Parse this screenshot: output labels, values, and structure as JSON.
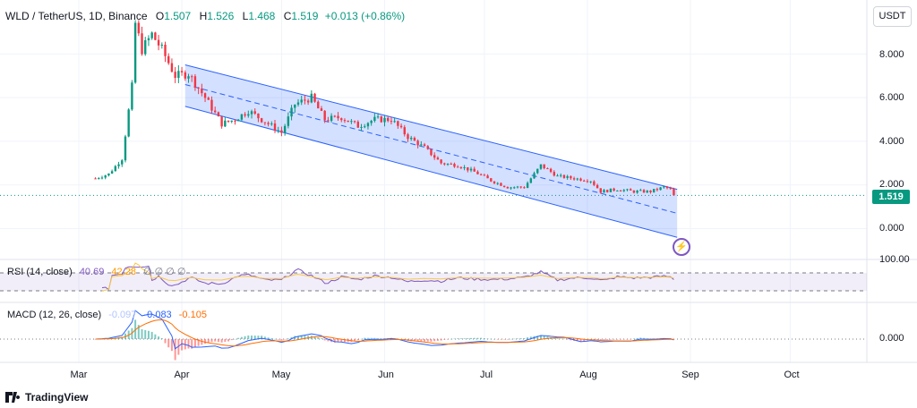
{
  "header": {
    "symbol": "WLD / TetherUS, 1D, Binance",
    "open_key": "O",
    "open": "1.507",
    "high_key": "H",
    "high": "1.526",
    "low_key": "L",
    "low": "1.468",
    "close_key": "C",
    "close": "1.519",
    "change": "+0.013 (+0.86%)"
  },
  "currency_button": "USDT",
  "price_badge": "1.519",
  "rsi_header": {
    "name": "RSI (14, close)",
    "value1": "40.69",
    "value2": "42.28",
    "dots": "∅ ∅ ∅ ∅"
  },
  "macd_header": {
    "name": "MACD (12, 26, close)",
    "value1": "-0.097",
    "value2": "-0.083",
    "value3": "-0.105"
  },
  "logo_text": "TradingView",
  "colors": {
    "up": "#089981",
    "down": "#f23645",
    "channel": "#2962ff",
    "rsi": "#7e57c2",
    "signal": "#ff9800"
  },
  "chart_data": [
    {
      "type": "candlestick",
      "title": "WLD / TetherUS, 1D, Binance",
      "x_ticks": [
        "Mar",
        "Apr",
        "May",
        "Jun",
        "Jul",
        "Aug",
        "Sep",
        "Oct"
      ],
      "y_ticks": [
        "8.000",
        "6.000",
        "4.000",
        "2.000",
        "0.000"
      ],
      "ylim": [
        -0.3,
        10.5
      ],
      "last_price": 1.519,
      "close_path": [
        {
          "x": "Feb 18",
          "y": 2.3
        },
        {
          "x": "Feb 22",
          "y": 2.5
        },
        {
          "x": "Feb 26",
          "y": 3.2
        },
        {
          "x": "Feb 29",
          "y": 6.5
        },
        {
          "x": "Mar 3",
          "y": 8.5
        },
        {
          "x": "Mar 6",
          "y": 7.5
        },
        {
          "x": "Mar 9",
          "y": 9.2
        },
        {
          "x": "Mar 11",
          "y": 10.2
        },
        {
          "x": "Mar 14",
          "y": 9.5
        },
        {
          "x": "Mar 17",
          "y": 10.0
        },
        {
          "x": "Mar 20",
          "y": 8.2
        },
        {
          "x": "Mar 23",
          "y": 8.9
        },
        {
          "x": "Mar 26",
          "y": 8.2
        },
        {
          "x": "Mar 30",
          "y": 7.0
        },
        {
          "x": "Apr 3",
          "y": 7.1
        },
        {
          "x": "Apr 8",
          "y": 6.0
        },
        {
          "x": "Apr 13",
          "y": 4.8
        },
        {
          "x": "Apr 17",
          "y": 5.0
        },
        {
          "x": "Apr 21",
          "y": 5.4
        },
        {
          "x": "Apr 26",
          "y": 4.9
        },
        {
          "x": "May 1",
          "y": 4.4
        },
        {
          "x": "May 5",
          "y": 5.7
        },
        {
          "x": "May 10",
          "y": 6.0
        },
        {
          "x": "May 14",
          "y": 5.0
        },
        {
          "x": "May 19",
          "y": 5.1
        },
        {
          "x": "May 24",
          "y": 4.7
        },
        {
          "x": "May 29",
          "y": 5.0
        },
        {
          "x": "Jun 3",
          "y": 5.0
        },
        {
          "x": "Jun 8",
          "y": 4.2
        },
        {
          "x": "Jun 13",
          "y": 3.7
        },
        {
          "x": "Jun 18",
          "y": 3.0
        },
        {
          "x": "Jun 23",
          "y": 2.9
        },
        {
          "x": "Jun 28",
          "y": 2.6
        },
        {
          "x": "Jul 3",
          "y": 2.2
        },
        {
          "x": "Jul 8",
          "y": 1.9
        },
        {
          "x": "Jul 13",
          "y": 1.9
        },
        {
          "x": "Jul 18",
          "y": 2.9
        },
        {
          "x": "Jul 23",
          "y": 2.4
        },
        {
          "x": "Jul 28",
          "y": 2.3
        },
        {
          "x": "Aug 2",
          "y": 2.2
        },
        {
          "x": "Aug 5",
          "y": 1.7
        },
        {
          "x": "Aug 10",
          "y": 1.8
        },
        {
          "x": "Aug 15",
          "y": 1.7
        },
        {
          "x": "Aug 20",
          "y": 1.7
        },
        {
          "x": "Aug 24",
          "y": 1.9
        },
        {
          "x": "Aug 26",
          "y": 1.8
        },
        {
          "x": "Aug 27",
          "y": 1.5
        }
      ],
      "channel": {
        "upper": [
          {
            "x": "Apr 2",
            "y": 7.5
          },
          {
            "x": "Aug 28",
            "y": 1.8
          }
        ],
        "middle": [
          {
            "x": "Apr 2",
            "y": 6.6
          },
          {
            "x": "Aug 28",
            "y": 0.7
          }
        ],
        "lower": [
          {
            "x": "Apr 2",
            "y": 5.6
          },
          {
            "x": "Aug 28",
            "y": -0.4
          }
        ]
      }
    },
    {
      "type": "line",
      "title": "RSI (14, close)",
      "series": [
        {
          "name": "RSI",
          "values": [
            40.69
          ]
        },
        {
          "name": "RSI MA",
          "values": [
            42.28
          ]
        }
      ],
      "y_ticks": [
        "100.00"
      ],
      "bands": [
        70,
        30
      ]
    },
    {
      "type": "bar",
      "title": "MACD (12, 26, close)",
      "series": [
        {
          "name": "MACD",
          "values": [
            -0.097
          ]
        },
        {
          "name": "Signal",
          "values": [
            -0.083
          ]
        },
        {
          "name": "Histogram",
          "values": [
            -0.105
          ]
        }
      ],
      "y_ticks": [
        "0.000"
      ]
    }
  ]
}
